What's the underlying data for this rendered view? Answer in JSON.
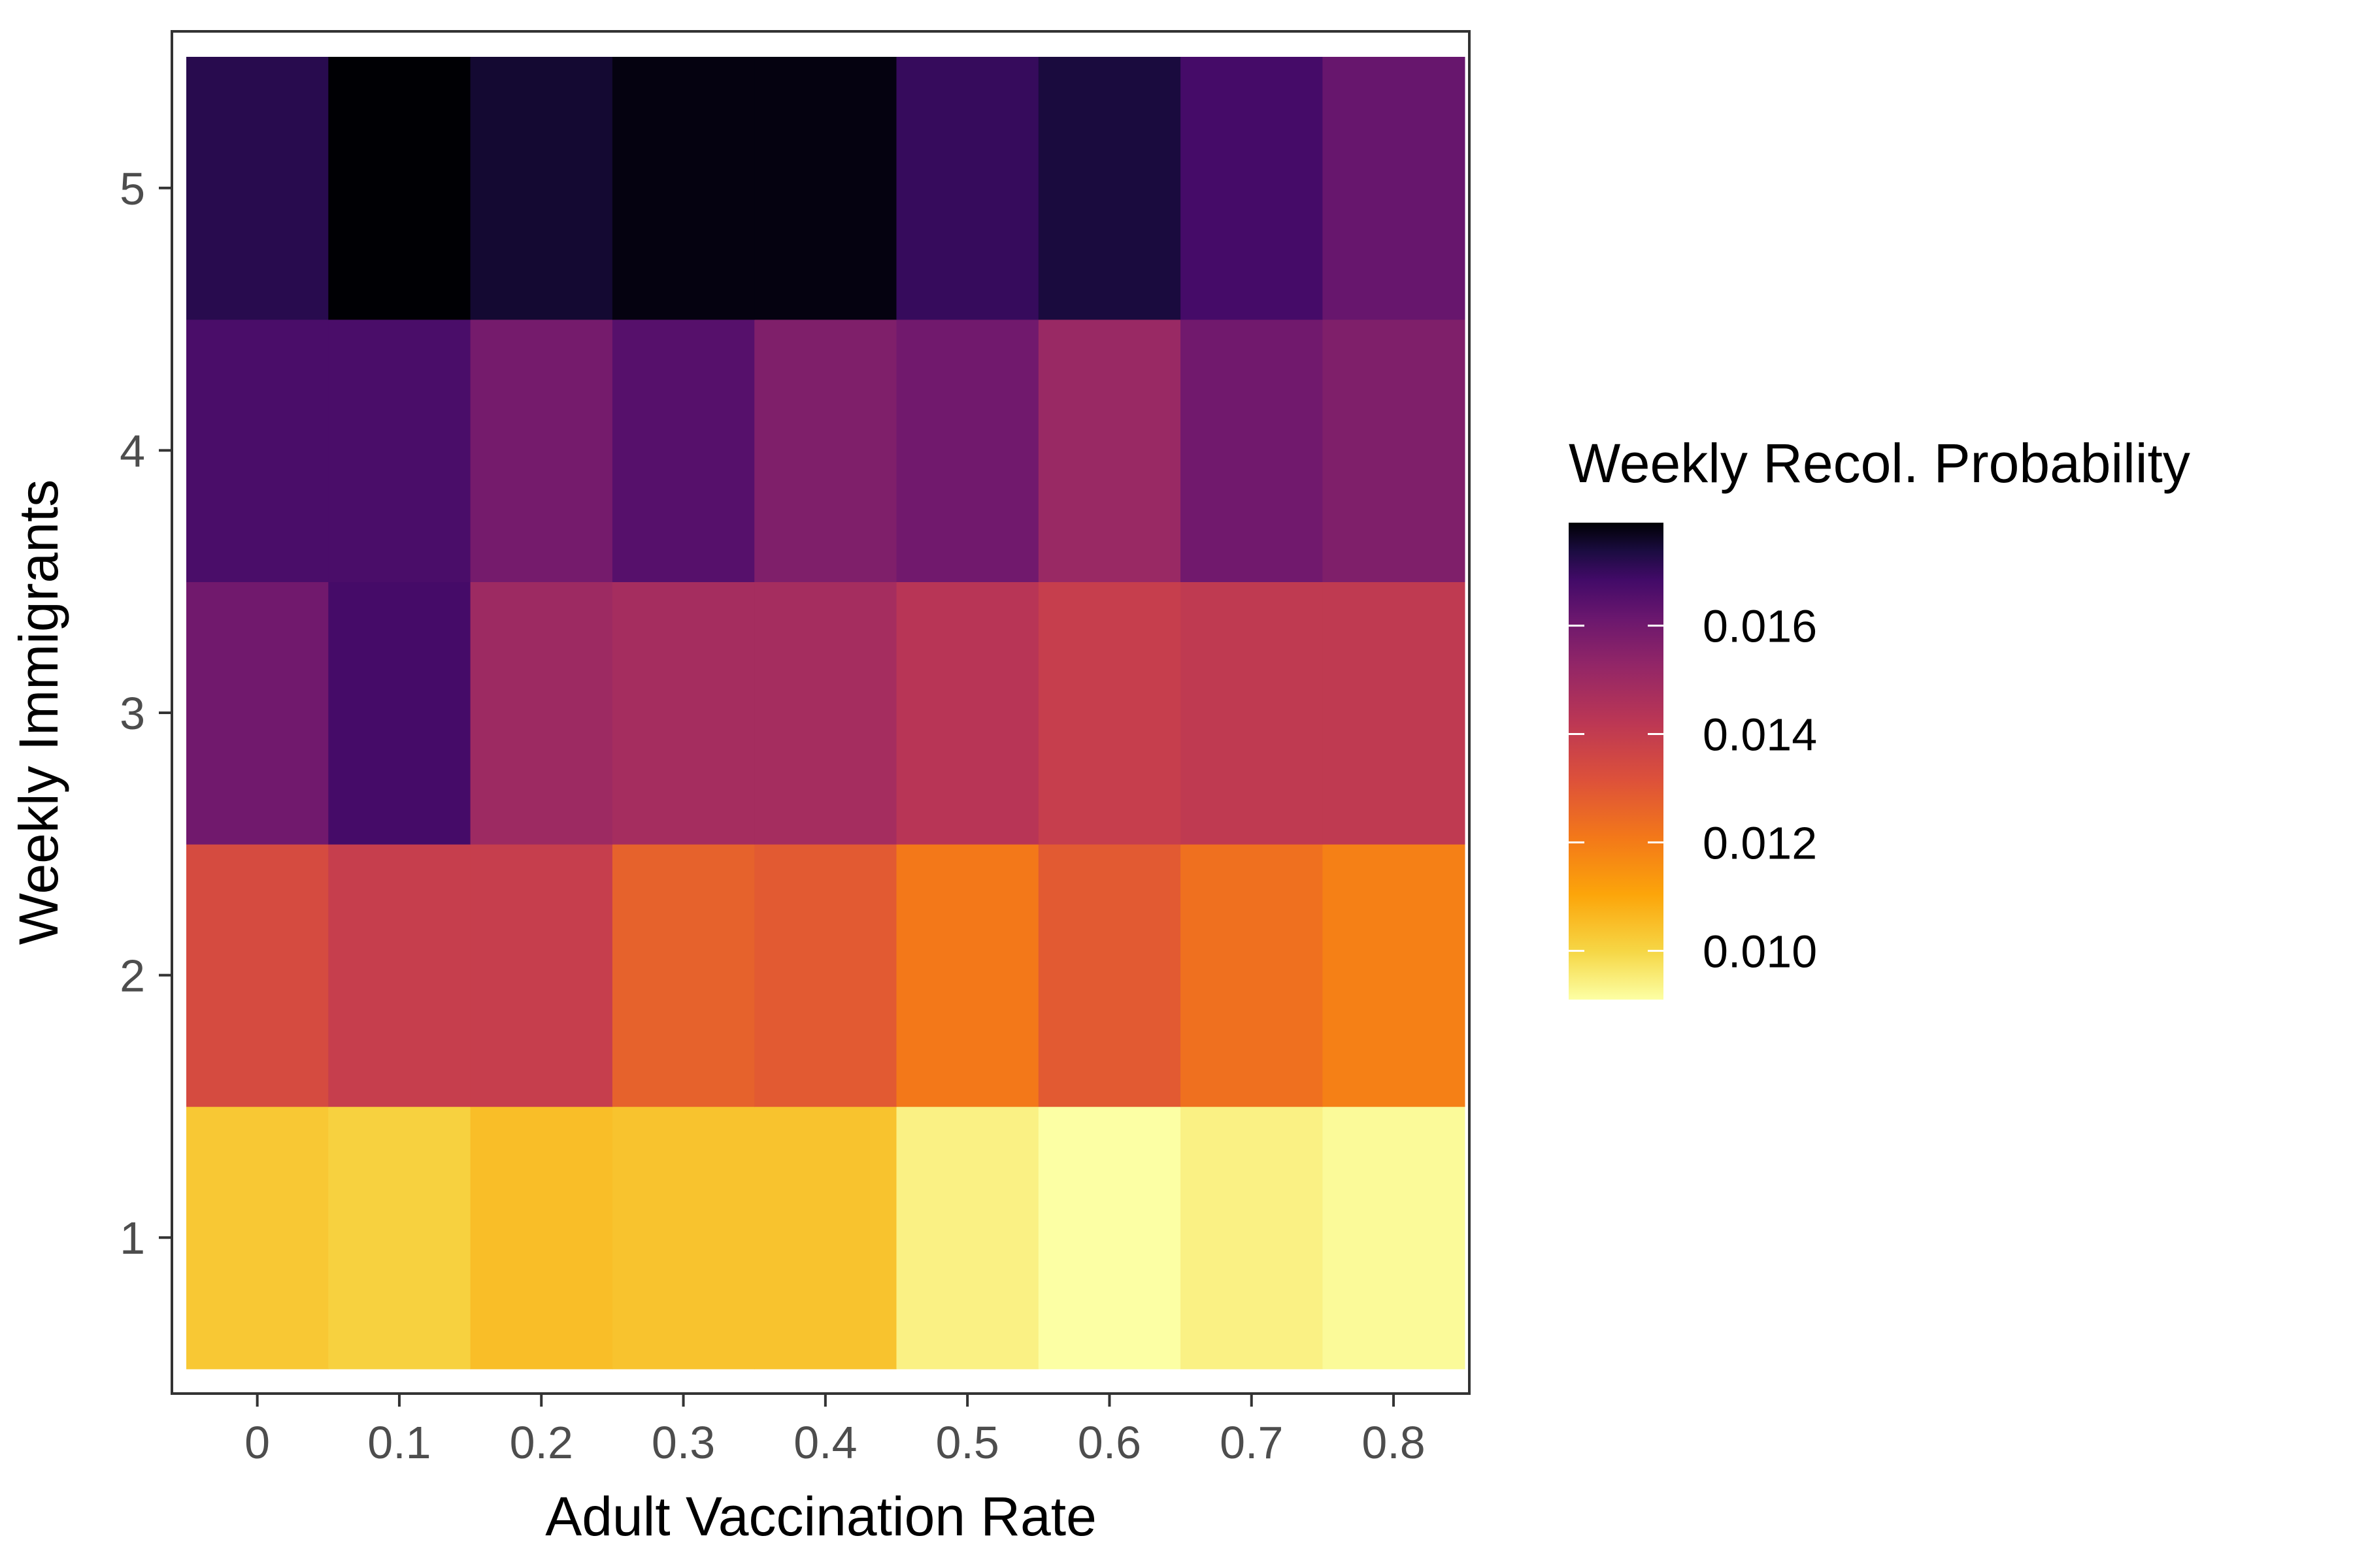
{
  "chart_data": {
    "type": "heatmap",
    "xlabel": "Adult Vaccination Rate",
    "ylabel": "Weekly Immigrants",
    "x": [
      "0",
      "0.1",
      "0.2",
      "0.3",
      "0.4",
      "0.5",
      "0.6",
      "0.7",
      "0.8"
    ],
    "y": [
      "1",
      "2",
      "3",
      "4",
      "5"
    ],
    "values": [
      [
        0.0103,
        0.0101,
        0.0105,
        0.0104,
        0.0104,
        0.0094,
        0.0091,
        0.0094,
        0.0092
      ],
      [
        0.0134,
        0.0139,
        0.0139,
        0.0127,
        0.0129,
        0.0121,
        0.0129,
        0.0123,
        0.0119
      ],
      [
        0.016,
        0.0168,
        0.015,
        0.0148,
        0.0148,
        0.0143,
        0.0139,
        0.0141,
        0.0141
      ],
      [
        0.0167,
        0.0167,
        0.0159,
        0.0165,
        0.0157,
        0.016,
        0.0151,
        0.016,
        0.0157
      ],
      [
        0.0172,
        0.0179,
        0.0175,
        0.0178,
        0.0178,
        0.017,
        0.0174,
        0.0168,
        0.0162
      ]
    ],
    "colorbar": {
      "title": "Weekly Recol. Probability",
      "ticks": [
        "0.010",
        "0.012",
        "0.014",
        "0.016"
      ],
      "tick_values": [
        0.01,
        0.012,
        0.014,
        0.016
      ],
      "range": [
        0.0091,
        0.0179
      ],
      "palette": "inferno (reversed)"
    },
    "grid": false,
    "legend_position": "right"
  }
}
